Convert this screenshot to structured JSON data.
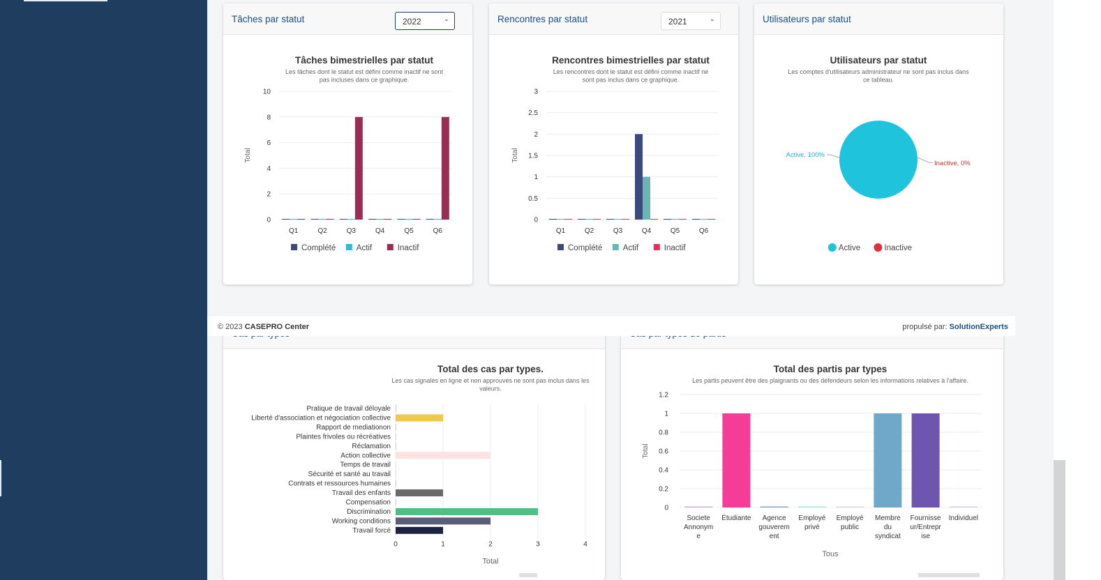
{
  "footer": {
    "copyright_prefix": "© 2023 ",
    "brand": "CASEPRO Center",
    "powered_prefix": "propulsé par: ",
    "powered_brand": "SolutionExperts"
  },
  "cards": {
    "taches": {
      "header": "Tâches par statut",
      "year": "2022"
    },
    "rencontres": {
      "header": "Rencontres par statut",
      "year": "2021"
    },
    "utilisateurs": {
      "header": "Utilisateurs par statut"
    },
    "cas": {
      "header": "Cas par types"
    },
    "partis": {
      "header": "Cas par types de partis"
    }
  },
  "colors": {
    "complete": "#3b4a7a",
    "actif_tasks": "#2bbcd6",
    "actif_meet": "#6bb5b5",
    "inactif": "#9b2d55",
    "inactif_meet": "#e3315a",
    "active_pie": "#1fc4dc",
    "inactive_pie": "#e03040",
    "title_blue": "#1c4e80",
    "sidebar": "#1f3d5e"
  },
  "chart_data": [
    {
      "type": "bar",
      "title": "Tâches bimestrielles par statut",
      "subtitle": "Les tâches dont le statut est défini comme inactif ne sont pas incluses dans ce graphique.",
      "ylabel": "Total",
      "categories": [
        "Q1",
        "Q2",
        "Q3",
        "Q4",
        "Q5",
        "Q6"
      ],
      "yticks": [
        "0",
        "2",
        "4",
        "6",
        "8",
        "10"
      ],
      "ylim": [
        0,
        10
      ],
      "series": [
        {
          "name": "Complété",
          "values": [
            0,
            0,
            0,
            0,
            0,
            0
          ]
        },
        {
          "name": "Actif",
          "values": [
            0,
            0,
            0,
            0,
            0,
            0
          ]
        },
        {
          "name": "Inactif",
          "values": [
            0,
            0,
            8,
            0,
            0,
            8
          ]
        }
      ]
    },
    {
      "type": "bar",
      "title": "Rencontres bimestrielles par statut",
      "subtitle": "Les rencontres dont le statut est défini comme inactif ne sont pas inclus dans ce graphique.",
      "ylabel": "Total",
      "categories": [
        "Q1",
        "Q2",
        "Q3",
        "Q4",
        "Q5",
        "Q6"
      ],
      "yticks": [
        "0",
        "0.5",
        "1",
        "1.5",
        "2",
        "2.5",
        "3"
      ],
      "ylim": [
        0,
        3
      ],
      "series": [
        {
          "name": "Complété",
          "values": [
            0,
            0,
            0,
            2,
            0,
            0
          ]
        },
        {
          "name": "Actif",
          "values": [
            0,
            0,
            0,
            1,
            0,
            0
          ]
        },
        {
          "name": "Inactif",
          "values": [
            0,
            0,
            0,
            0,
            0,
            0
          ]
        }
      ]
    },
    {
      "type": "pie",
      "title": "Utilisateurs par statut",
      "subtitle": "Les comptes d'utilisateurs administrateur ne sont pas inclus dans ce tableau.",
      "slices": [
        {
          "name": "Active",
          "value": 100,
          "label": "Active, 100%"
        },
        {
          "name": "Inactive",
          "value": 0,
          "label": "Inactive, 0%"
        }
      ]
    },
    {
      "type": "bar",
      "orientation": "horizontal",
      "title": "Total des cas par types.",
      "subtitle": "Les cas signalés en ligne et non approuvés ne sont pas inclus dans les valeurs.",
      "xlabel": "Total",
      "xticks": [
        "0",
        "1",
        "2",
        "3",
        "4"
      ],
      "xlim": [
        0,
        4
      ],
      "categories": [
        "Pratique de travail déloyale",
        "Liberté d'association et négociation collective",
        "Rapport de mediationon",
        "Plaintes frivoles ou récréatives",
        "Réclamation",
        "Action collective",
        "Temps de travail",
        "Sécurité et santé au travail",
        "Contrats et ressources humaines",
        "Travail des enfants",
        "Compensation",
        "Discrimination",
        "Working conditions",
        "Travail forcé"
      ],
      "values": [
        0,
        1,
        0,
        0,
        0,
        2,
        0,
        0,
        0,
        1,
        0,
        3,
        2,
        1
      ],
      "colors": [
        "#c8c8c8",
        "#f1c94a",
        "#c8c8c8",
        "#b8e0d8",
        "#b8e0d8",
        "#fde2e4",
        "#f5e3c4",
        "#f5e3c4",
        "#c8c8c8",
        "#6a6a6a",
        "#b8e0d8",
        "#4fbf86",
        "#5a5e7a",
        "#1c2240"
      ]
    },
    {
      "type": "bar",
      "title": "Total des partis par types",
      "subtitle": "Les partis peuvent être des plaignants ou des défendeurs selon les informations relatives à l'affaire.",
      "ylabel": "Total",
      "xlabel": "Tous",
      "categories": [
        [
          "Societe",
          "Annonym",
          "e"
        ],
        [
          "Étudiante"
        ],
        [
          "Agence",
          "gouverem",
          "ent"
        ],
        [
          "Employé",
          "privé"
        ],
        [
          "Employé",
          "public"
        ],
        [
          "Membre",
          "du",
          "syndicat"
        ],
        [
          "Fournisse",
          "ur/Entrepr",
          "ise"
        ],
        [
          "Individuel"
        ]
      ],
      "values": [
        0,
        1,
        0,
        0,
        0,
        1,
        1,
        0
      ],
      "yticks": [
        "0",
        "0.2",
        "0.4",
        "0.6",
        "0.8",
        "1",
        "1.2"
      ],
      "ylim": [
        0,
        1.2
      ],
      "colors": [
        "#c9b3d6",
        "#f53c97",
        "#7fa7c7",
        "#a8e6e0",
        "#dddddd",
        "#6fa8c8",
        "#6d55b0",
        "#c8d0ee"
      ]
    }
  ]
}
